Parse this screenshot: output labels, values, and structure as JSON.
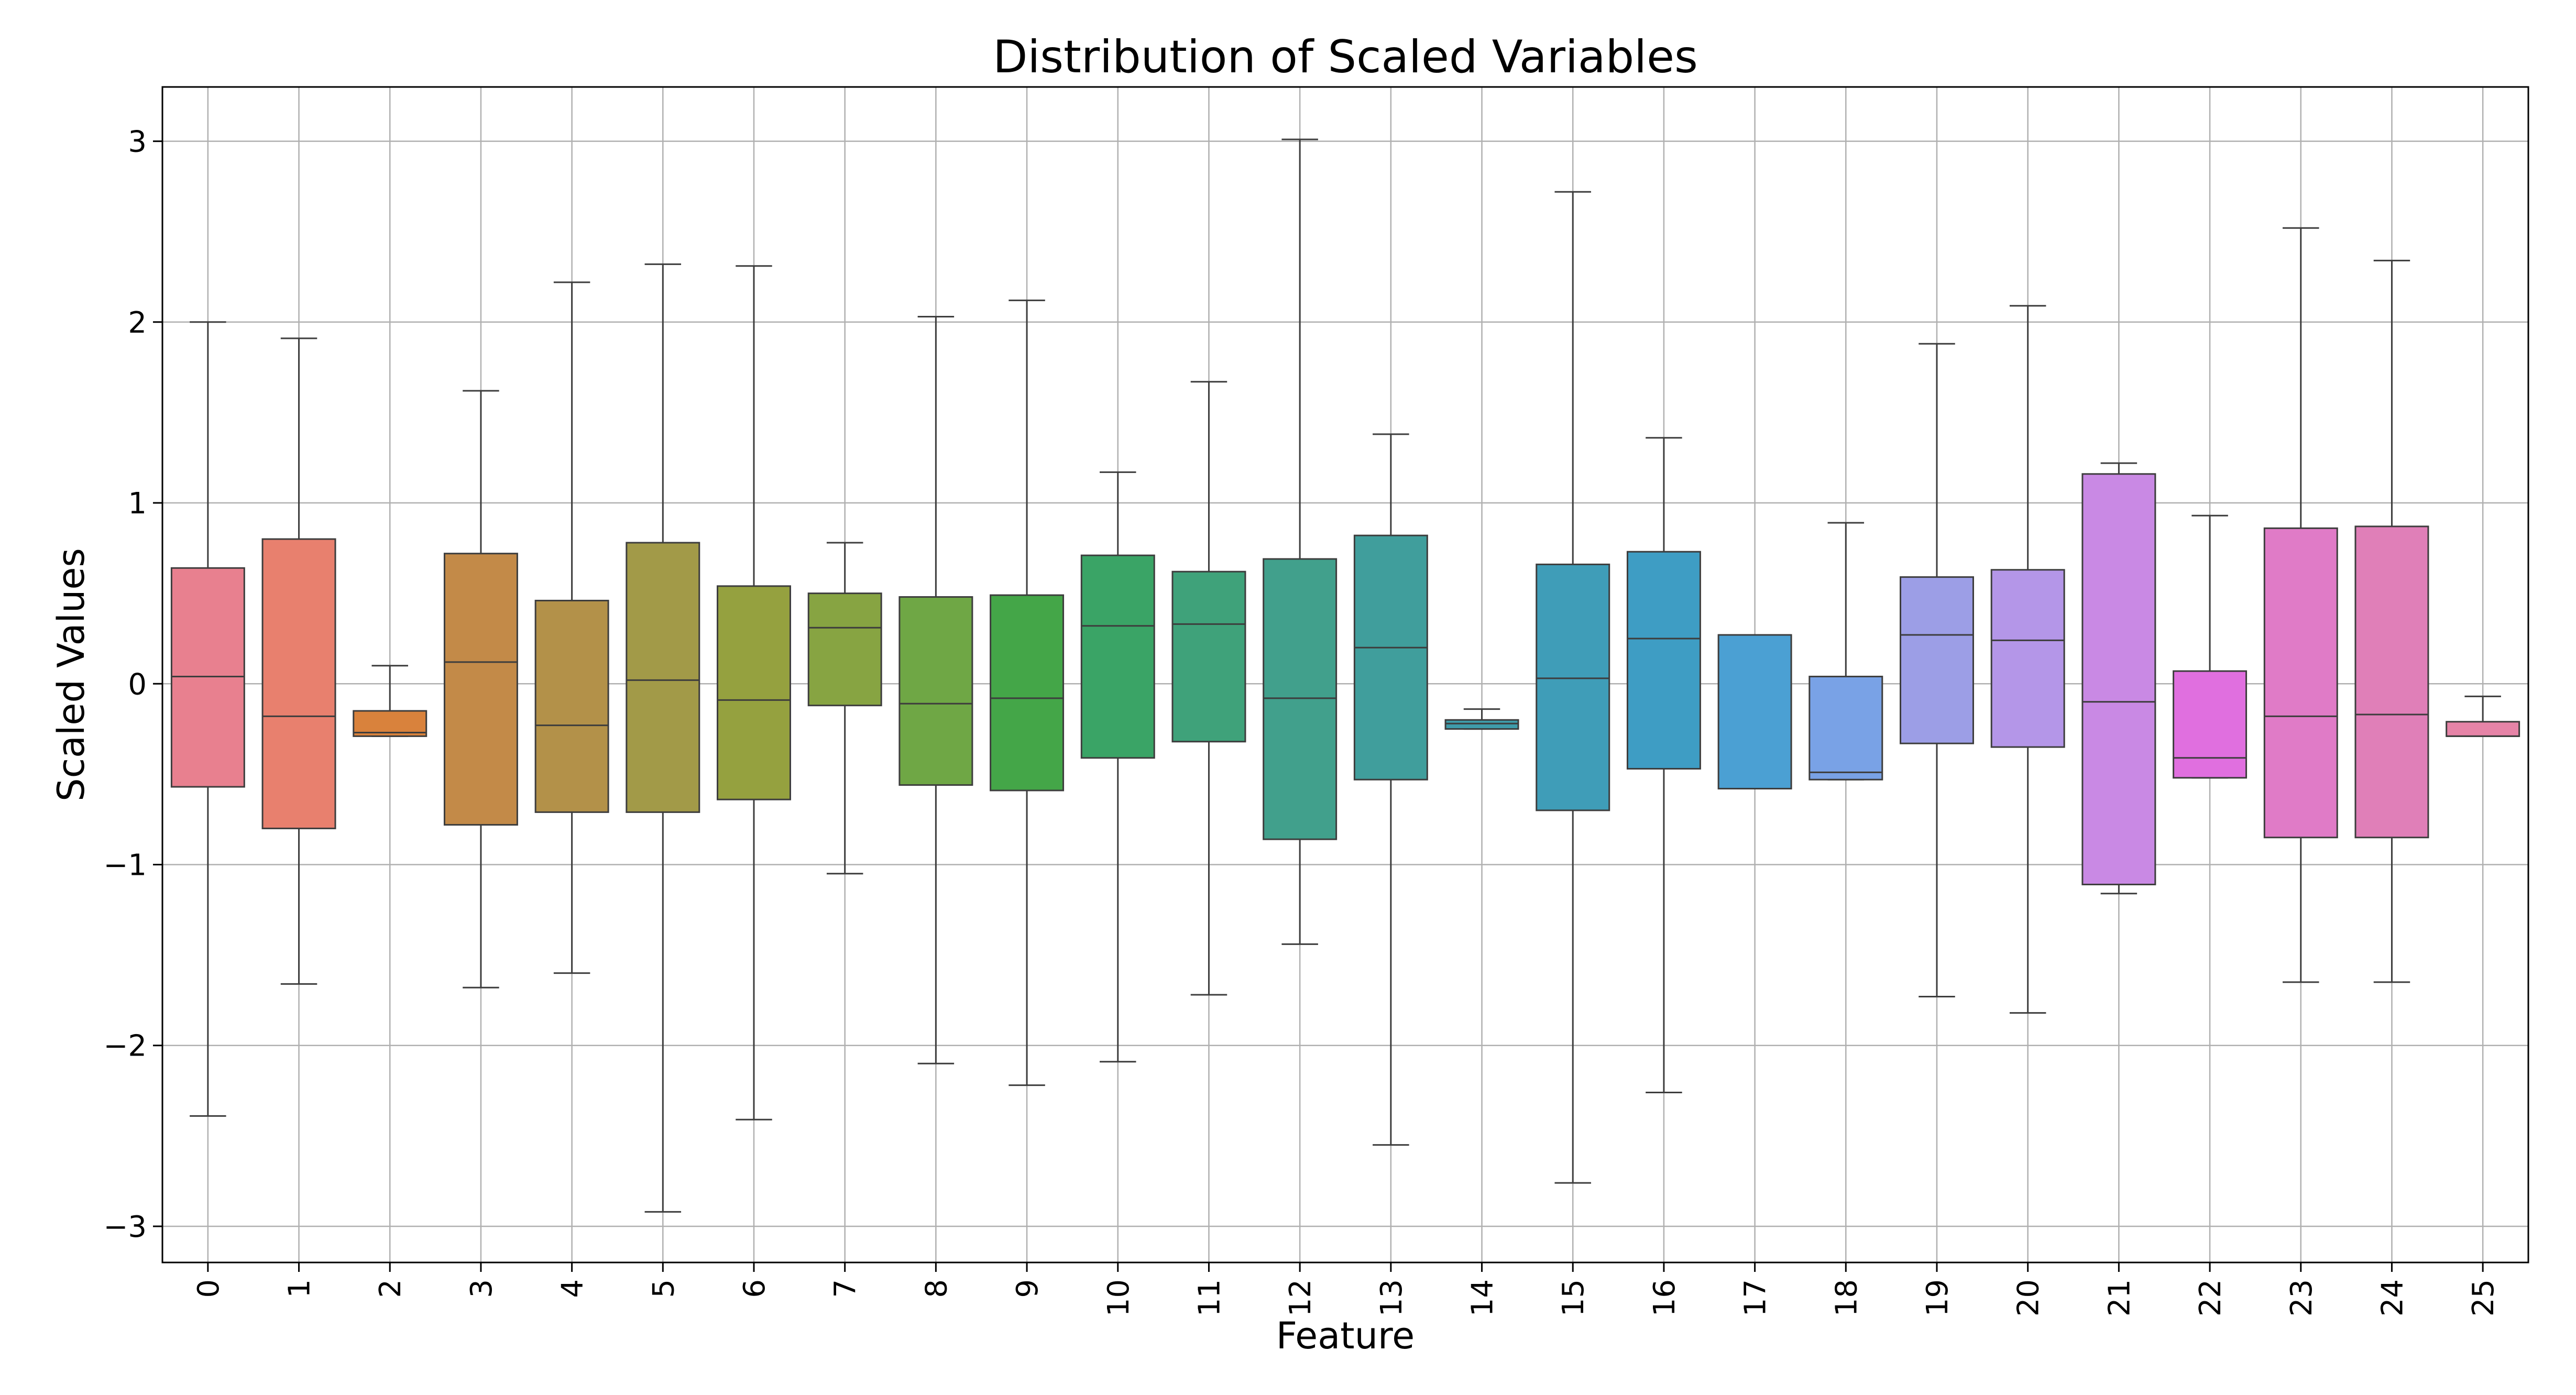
{
  "chart_data": {
    "type": "box",
    "title": "Distribution of Scaled Variables",
    "xlabel": "Feature",
    "ylabel": "Scaled Values",
    "ylim": [
      -3.2,
      3.3
    ],
    "yticks": [
      3,
      2,
      1,
      0,
      -1,
      -2,
      -3
    ],
    "ytick_labels": [
      "3",
      "2",
      "1",
      "0",
      "−1",
      "−2",
      "−3"
    ],
    "grid": true,
    "categories": [
      "0",
      "1",
      "2",
      "3",
      "4",
      "5",
      "6",
      "7",
      "8",
      "9",
      "10",
      "11",
      "12",
      "13",
      "14",
      "15",
      "16",
      "17",
      "18",
      "19",
      "20",
      "21",
      "22",
      "23",
      "24",
      "25"
    ],
    "boxes": [
      {
        "whislo": -2.39,
        "q1": -0.57,
        "med": 0.04,
        "q3": 0.64,
        "whishi": 2.0,
        "color": "#e8808f"
      },
      {
        "whislo": -1.66,
        "q1": -0.8,
        "med": -0.18,
        "q3": 0.8,
        "whishi": 1.91,
        "color": "#e8806e"
      },
      {
        "whislo": -0.29,
        "q1": -0.29,
        "med": -0.27,
        "q3": -0.15,
        "whishi": 0.1,
        "color": "#d9823c"
      },
      {
        "whislo": -1.68,
        "q1": -0.78,
        "med": 0.12,
        "q3": 0.72,
        "whishi": 1.62,
        "color": "#c38a48"
      },
      {
        "whislo": -1.6,
        "q1": -0.71,
        "med": -0.23,
        "q3": 0.46,
        "whishi": 2.22,
        "color": "#b39149"
      },
      {
        "whislo": -2.92,
        "q1": -0.71,
        "med": 0.02,
        "q3": 0.78,
        "whishi": 2.32,
        "color": "#a29a48"
      },
      {
        "whislo": -2.41,
        "q1": -0.64,
        "med": -0.09,
        "q3": 0.54,
        "whishi": 2.31,
        "color": "#95a13f"
      },
      {
        "whislo": -1.05,
        "q1": -0.12,
        "med": 0.31,
        "q3": 0.5,
        "whishi": 0.78,
        "color": "#87a442"
      },
      {
        "whislo": -2.1,
        "q1": -0.56,
        "med": -0.11,
        "q3": 0.48,
        "whishi": 2.03,
        "color": "#6fa745"
      },
      {
        "whislo": -2.22,
        "q1": -0.59,
        "med": -0.08,
        "q3": 0.49,
        "whishi": 2.12,
        "color": "#44a648"
      },
      {
        "whislo": -2.09,
        "q1": -0.41,
        "med": 0.32,
        "q3": 0.71,
        "whishi": 1.17,
        "color": "#3aa466"
      },
      {
        "whislo": -1.72,
        "q1": -0.32,
        "med": 0.33,
        "q3": 0.62,
        "whishi": 1.67,
        "color": "#3fa27a"
      },
      {
        "whislo": -1.44,
        "q1": -0.86,
        "med": -0.08,
        "q3": 0.69,
        "whishi": 3.01,
        "color": "#41a08c"
      },
      {
        "whislo": -2.55,
        "q1": -0.53,
        "med": 0.2,
        "q3": 0.82,
        "whishi": 1.38,
        "color": "#409e9c"
      },
      {
        "whislo": -0.25,
        "q1": -0.25,
        "med": -0.22,
        "q3": -0.2,
        "whishi": -0.14,
        "color": "#3f9caa"
      },
      {
        "whislo": -2.76,
        "q1": -0.7,
        "med": 0.03,
        "q3": 0.66,
        "whishi": 2.72,
        "color": "#3f9db8"
      },
      {
        "whislo": -2.26,
        "q1": -0.47,
        "med": 0.25,
        "q3": 0.73,
        "whishi": 1.36,
        "color": "#3e9dc4"
      },
      {
        "whislo": -0.58,
        "q1": -0.58,
        "med": 0.27,
        "q3": 0.27,
        "whishi": 0.27,
        "color": "#4ba0d3"
      },
      {
        "whislo": -0.53,
        "q1": -0.53,
        "med": -0.49,
        "q3": 0.04,
        "whishi": 0.89,
        "color": "#79a2e6"
      },
      {
        "whislo": -1.73,
        "q1": -0.33,
        "med": 0.27,
        "q3": 0.59,
        "whishi": 1.88,
        "color": "#9c9ee6"
      },
      {
        "whislo": -1.82,
        "q1": -0.35,
        "med": 0.24,
        "q3": 0.63,
        "whishi": 2.09,
        "color": "#b496e8"
      },
      {
        "whislo": -1.16,
        "q1": -1.11,
        "med": -0.1,
        "q3": 1.16,
        "whishi": 1.22,
        "color": "#c989e4"
      },
      {
        "whislo": -0.52,
        "q1": -0.52,
        "med": -0.41,
        "q3": 0.07,
        "whishi": 0.93,
        "color": "#e06fdf"
      },
      {
        "whislo": -1.65,
        "q1": -0.85,
        "med": -0.18,
        "q3": 0.86,
        "whishi": 2.52,
        "color": "#e07bc7"
      },
      {
        "whislo": -1.65,
        "q1": -0.85,
        "med": -0.17,
        "q3": 0.87,
        "whishi": 2.34,
        "color": "#e07fb8"
      },
      {
        "whislo": -0.29,
        "q1": -0.29,
        "med": -0.29,
        "q3": -0.21,
        "whishi": -0.07,
        "color": "#e684a7"
      }
    ]
  }
}
